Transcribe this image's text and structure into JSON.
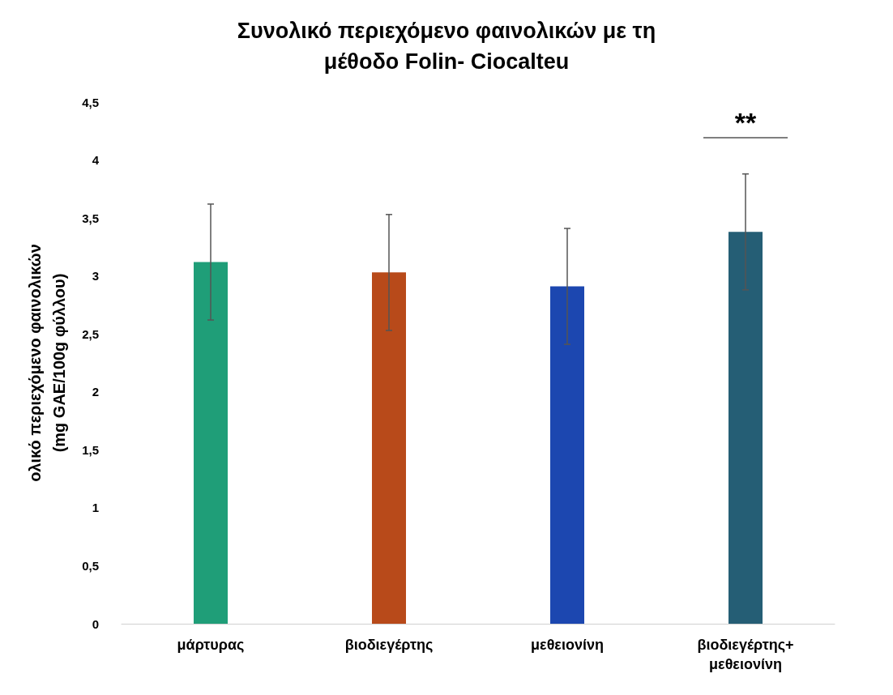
{
  "chart_data": {
    "type": "bar",
    "title": "Συνολικό περιεχόμενο φαινολικών με τη\nμέθοδο Folin- Ciocalteu",
    "ylabel": "ολικό περιεχόμενο φαινολικών\n(mg GAE/100g φύλλου)",
    "categories": [
      "μάρτυρας",
      "βιοδιεγέρτης",
      "μεθειονίνη",
      "βιοδιεγέρτης+\nμεθειονίνη"
    ],
    "values": [
      3.12,
      3.03,
      2.91,
      3.38
    ],
    "colors": [
      "#1f9e78",
      "#b84a1a",
      "#1c47b0",
      "#255e75"
    ],
    "errors": [
      0.5,
      0.5,
      0.5,
      0.5
    ],
    "ylim": [
      0,
      4.5
    ],
    "yticks": [
      0,
      {
        "value": 0.5,
        "label": "0,5"
      },
      1,
      {
        "value": 1.5,
        "label": "1,5"
      },
      2,
      {
        "value": 2.5,
        "label": "2,5"
      },
      3,
      {
        "value": 3.5,
        "label": "3,5"
      },
      4,
      {
        "value": 4.5,
        "label": "4,5"
      }
    ],
    "annotations": [
      "**"
    ]
  }
}
